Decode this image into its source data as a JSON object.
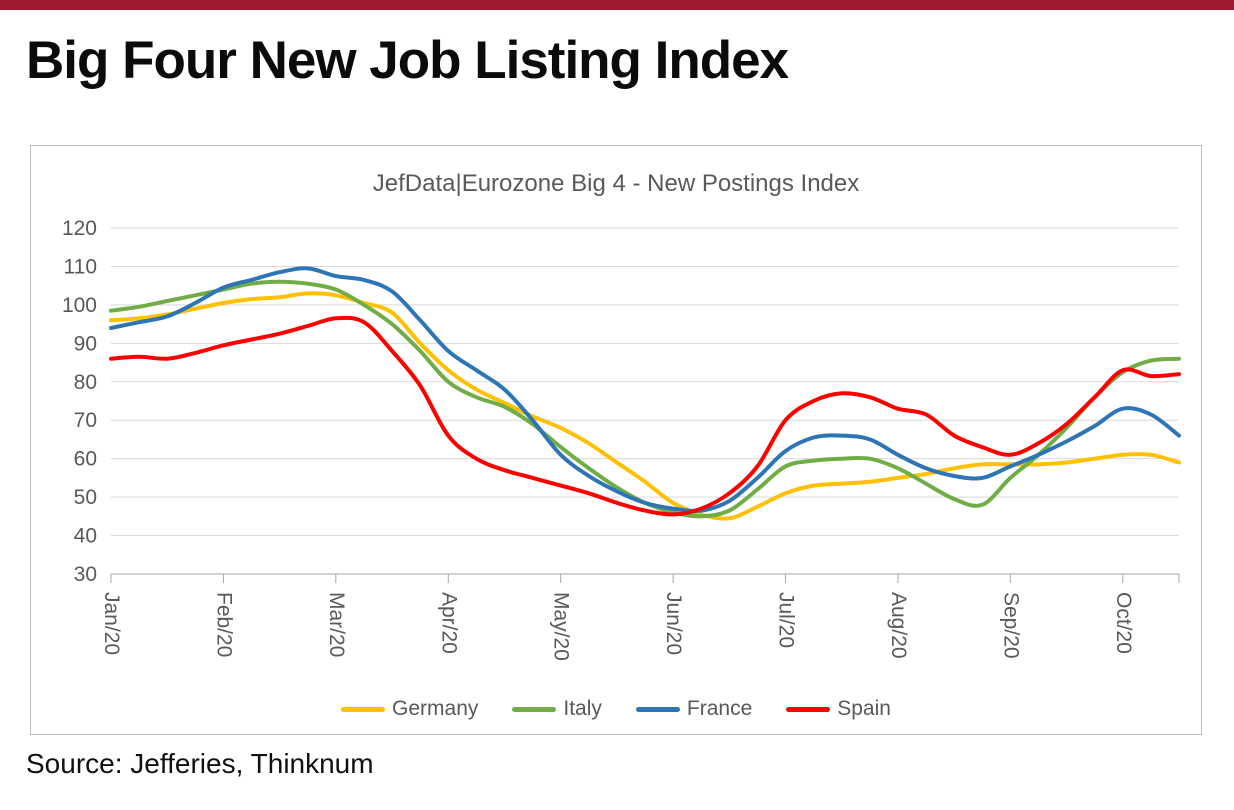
{
  "page": {
    "title": "Big Four New Job Listing Index",
    "source": "Source: Jefferies, Thinknum",
    "top_bar_color": "#9E1B32"
  },
  "chart_data": {
    "type": "line",
    "title": "JefData|Eurozone Big 4 - New Postings Index",
    "categories": [
      "Jan/20",
      "Feb/20",
      "Mar/20",
      "Apr/20",
      "May/20",
      "Jun/20",
      "Jul/20",
      "Aug/20",
      "Sep/20",
      "Oct/20"
    ],
    "x_points_per_category": 4,
    "ylim": [
      30,
      120
    ],
    "ytick_interval": 10,
    "grid": true,
    "grid_color": "#d9d9d9",
    "axis_color": "#a6a6a6",
    "axis_text_color": "#595959",
    "legend_position": "bottom",
    "series": [
      {
        "name": "Germany",
        "color": "#FFC000",
        "values": [
          96,
          96.5,
          97.5,
          99,
          100.5,
          101.5,
          102,
          103,
          102.5,
          100.5,
          98,
          90,
          83,
          78,
          74.5,
          71,
          68,
          64,
          59,
          54,
          48.5,
          45.5,
          44.5,
          47.5,
          51,
          53,
          53.5,
          54,
          55,
          56,
          57.5,
          58.5,
          58.5,
          58.5,
          59,
          60,
          61,
          61,
          59
        ]
      },
      {
        "name": "Italy",
        "color": "#70AD47",
        "values": [
          98.5,
          99.5,
          101,
          102.5,
          104,
          105.5,
          106,
          105.5,
          104,
          100,
          95,
          88,
          80,
          76,
          73.5,
          69,
          63,
          57.5,
          52.5,
          48.5,
          46,
          45,
          46.5,
          52,
          58,
          59.5,
          60,
          60,
          57.5,
          53.5,
          49.5,
          48,
          55,
          61,
          68,
          76,
          82.5,
          85.5,
          86
        ]
      },
      {
        "name": "France",
        "color": "#2E75B6",
        "values": [
          94,
          95.5,
          97,
          100.5,
          104.5,
          106.5,
          108.5,
          109.5,
          107.5,
          106.5,
          103.5,
          96,
          88,
          83,
          78,
          70,
          61,
          55.5,
          51.5,
          48.5,
          47,
          46.5,
          49,
          55,
          62,
          65.5,
          66,
          65,
          61,
          57.5,
          55.5,
          55,
          58,
          61,
          64.5,
          68.5,
          73,
          71.5,
          66
        ]
      },
      {
        "name": "Spain",
        "color": "#FF0000",
        "values": [
          86,
          86.5,
          86,
          87.5,
          89.5,
          91,
          92.5,
          94.5,
          96.5,
          95.5,
          88,
          79,
          66,
          60,
          57,
          55,
          53,
          51,
          48.5,
          46.5,
          45.5,
          47,
          51,
          58,
          70,
          75,
          77,
          76,
          73,
          71.5,
          66,
          63,
          61,
          64,
          69,
          76,
          83,
          81.5,
          82
        ]
      }
    ]
  }
}
